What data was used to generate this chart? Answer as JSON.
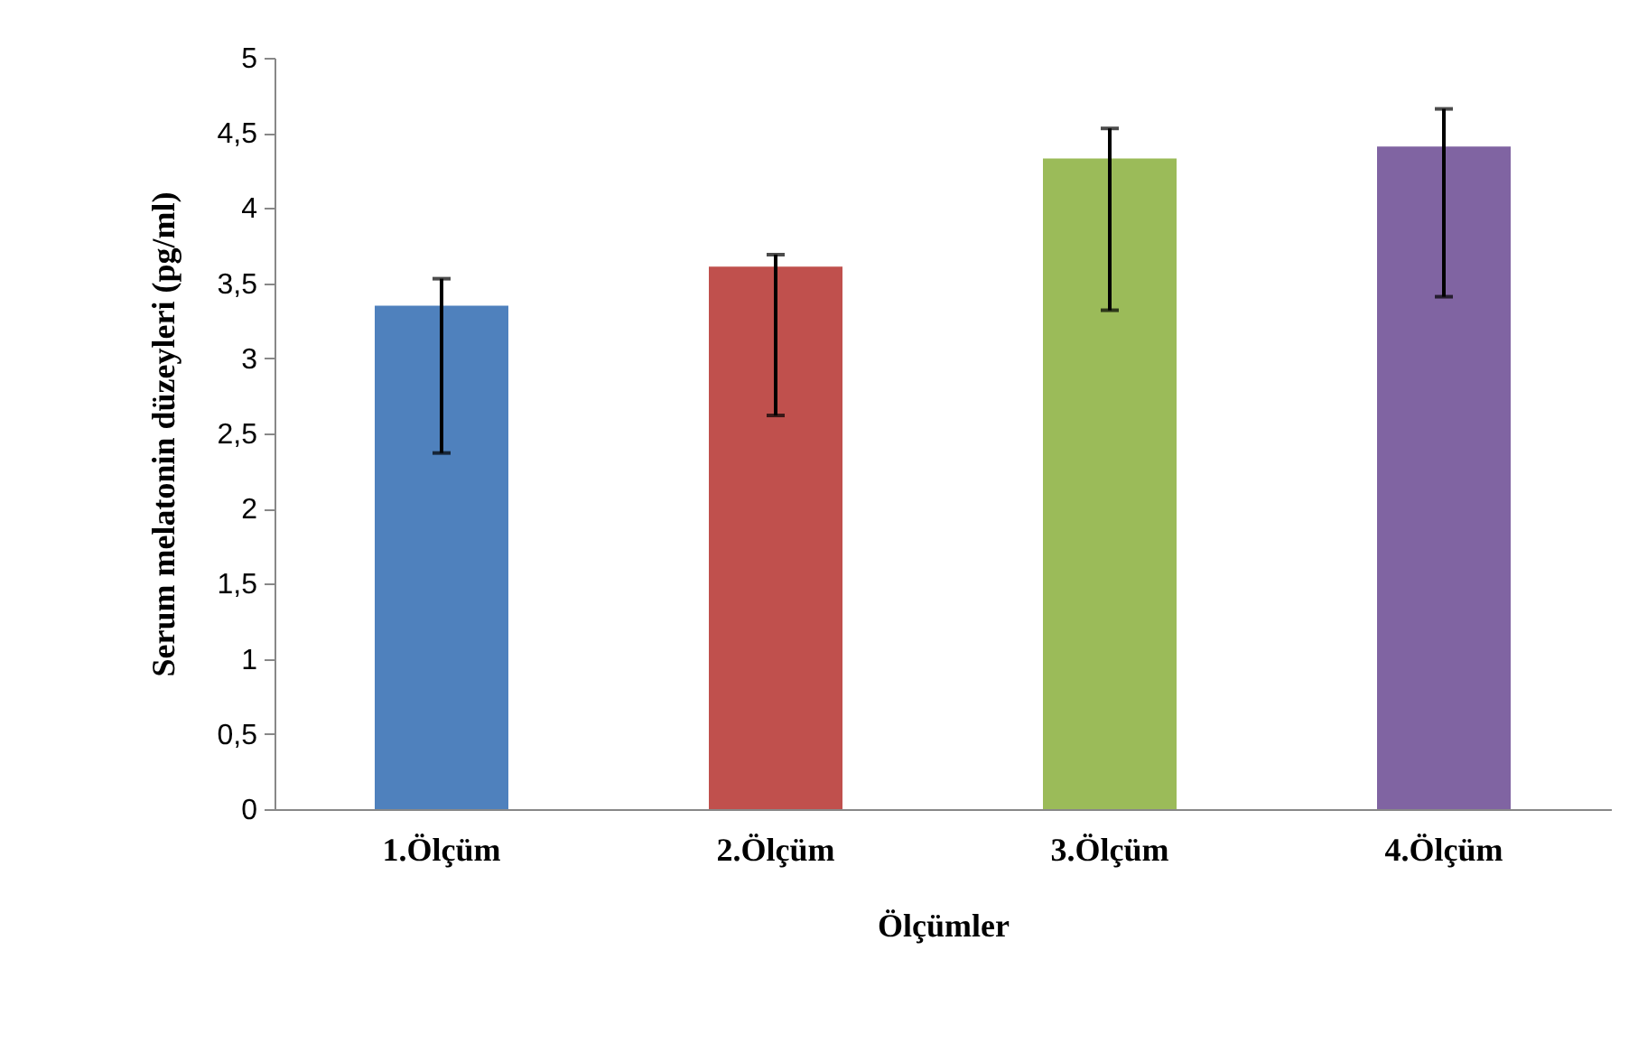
{
  "chart_data": {
    "type": "bar",
    "xlabel": "Ölçümler",
    "ylabel": "Serum melatonin düzeyleri (pg/ml)",
    "categories": [
      "1.Ölçüm",
      "2.Ölçüm",
      "3.Ölçüm",
      "4.Ölçüm"
    ],
    "values": [
      3.35,
      3.61,
      4.33,
      4.41
    ],
    "colors": [
      "#4f81bd",
      "#c0504d",
      "#9bbb59",
      "#8064a2"
    ],
    "errors": [
      [
        2.37,
        3.53
      ],
      [
        2.62,
        3.69
      ],
      [
        3.32,
        4.53
      ],
      [
        3.41,
        4.66
      ]
    ],
    "ylim": [
      0,
      5
    ],
    "yticks": [
      0,
      {
        "value": 0.5,
        "label": "0,5"
      },
      1,
      {
        "value": 1.5,
        "label": "1,5"
      },
      2,
      {
        "value": 2.5,
        "label": "2,5"
      },
      3,
      {
        "value": 3.5,
        "label": "3,5"
      },
      4,
      {
        "value": 4.5,
        "label": "4,5"
      },
      5
    ],
    "grid": false
  }
}
